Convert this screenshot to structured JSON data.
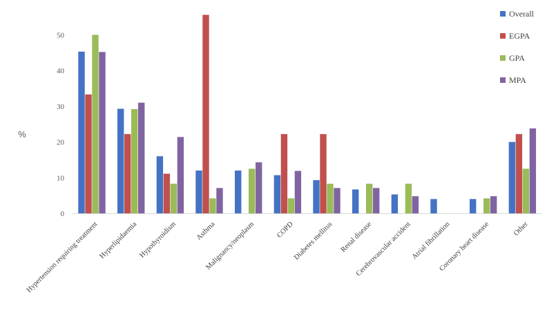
{
  "chart_data": {
    "type": "bar",
    "title": "",
    "xlabel": "",
    "ylabel": "%",
    "ylim": [
      0,
      55
    ],
    "yticks": [
      0,
      10,
      20,
      30,
      40,
      50
    ],
    "grid": false,
    "legend_position": "top-right",
    "categories": [
      "Hypertension requiring treatment",
      "Hyperlipidaemia",
      "Hypothyroidism",
      "Asthma",
      "Malignancy/neoplasm",
      "COPD",
      "Diabetes mellitus",
      "Renal disease",
      "Cerebrovascular accident",
      "Atrial fibrillation",
      "Coronary heart disease",
      "Other"
    ],
    "series": [
      {
        "name": "Overall",
        "color": "#4472c4",
        "values": [
          45.3,
          29.3,
          16.0,
          12.0,
          12.0,
          10.7,
          9.3,
          6.7,
          5.3,
          4.0,
          4.0,
          20.0
        ]
      },
      {
        "name": "EGPA",
        "color": "#c0504d",
        "values": [
          33.3,
          22.2,
          11.1,
          55.6,
          0,
          22.2,
          22.2,
          0,
          0,
          0,
          0,
          22.2
        ]
      },
      {
        "name": "GPA",
        "color": "#9bbb59",
        "values": [
          50.0,
          29.2,
          8.3,
          4.2,
          12.5,
          4.2,
          8.3,
          8.3,
          8.3,
          0,
          4.2,
          12.5
        ]
      },
      {
        "name": "MPA",
        "color": "#8064a2",
        "values": [
          45.2,
          31.0,
          21.4,
          7.1,
          14.3,
          11.9,
          7.1,
          7.1,
          4.8,
          0,
          4.8,
          23.8
        ]
      }
    ]
  }
}
